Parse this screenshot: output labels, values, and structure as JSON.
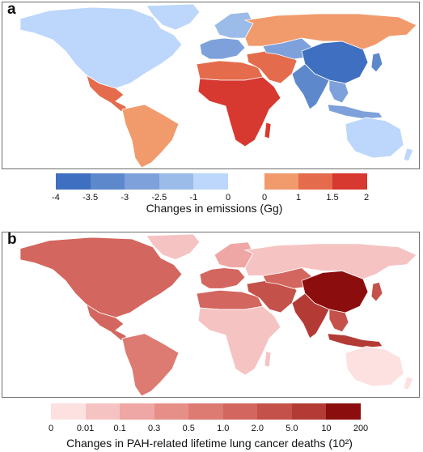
{
  "panel_a": {
    "letter": "a",
    "legend_title": "Changes in emissions (Gg)",
    "neg_colors": [
      "#3f6fc0",
      "#5d88cc",
      "#7ea1db",
      "#9bbbe8",
      "#bcd7fb"
    ],
    "neg_ticks": [
      "-4",
      "-3.5",
      "-3",
      "-2.5",
      "-1",
      "0"
    ],
    "pos_colors": [
      "#f19a6c",
      "#e46b4c",
      "#d7382f"
    ],
    "pos_ticks": [
      "0",
      "1",
      "1.5",
      "2"
    ],
    "region_colors": {
      "north_america": "#bcd7fb",
      "central_america": "#e46b4c",
      "south_america": "#f19a6c",
      "greenland": "#bcd7fb",
      "europe_west": "#7ea1db",
      "europe_north": "#9bbbe8",
      "russia": "#f19a6c",
      "north_africa": "#e46b4c",
      "africa": "#d7382f",
      "madagascar": "#d7382f",
      "middle_east": "#e46b4c",
      "central_asia": "#7ea1db",
      "china": "#3f6fc0",
      "india": "#5d88cc",
      "southeast_asia": "#7ea1db",
      "indonesia": "#7ea1db",
      "japan": "#5d88cc",
      "australia": "#bcd7fb",
      "new_zealand": "#bcd7fb"
    }
  },
  "panel_b": {
    "letter": "b",
    "legend_title": "Changes in PAH-related lifetime lung cancer deaths (10²)",
    "colors": [
      "#fde0e0",
      "#f6c3c3",
      "#eea7a4",
      "#e68f88",
      "#dd7a72",
      "#d3665e",
      "#c4514a",
      "#b43b35",
      "#8b0d0d"
    ],
    "ticks": [
      "0",
      "0.01",
      "0.1",
      "0.3",
      "0.5",
      "1.0",
      "2.0",
      "5.0",
      "10",
      "200"
    ],
    "region_colors": {
      "north_america": "#d3665e",
      "central_america": "#d3665e",
      "south_america": "#dd7a72",
      "greenland": "#f6c3c3",
      "europe_west": "#d3665e",
      "europe_north": "#eea7a4",
      "russia": "#f6c3c3",
      "north_africa": "#d3665e",
      "africa": "#f6c3c3",
      "madagascar": "#f6c3c3",
      "middle_east": "#c4514a",
      "central_asia": "#d3665e",
      "china": "#8b0d0d",
      "india": "#b43b35",
      "southeast_asia": "#c4514a",
      "indonesia": "#b43b35",
      "japan": "#c4514a",
      "australia": "#fde0e0",
      "new_zealand": "#fde0e0"
    }
  }
}
